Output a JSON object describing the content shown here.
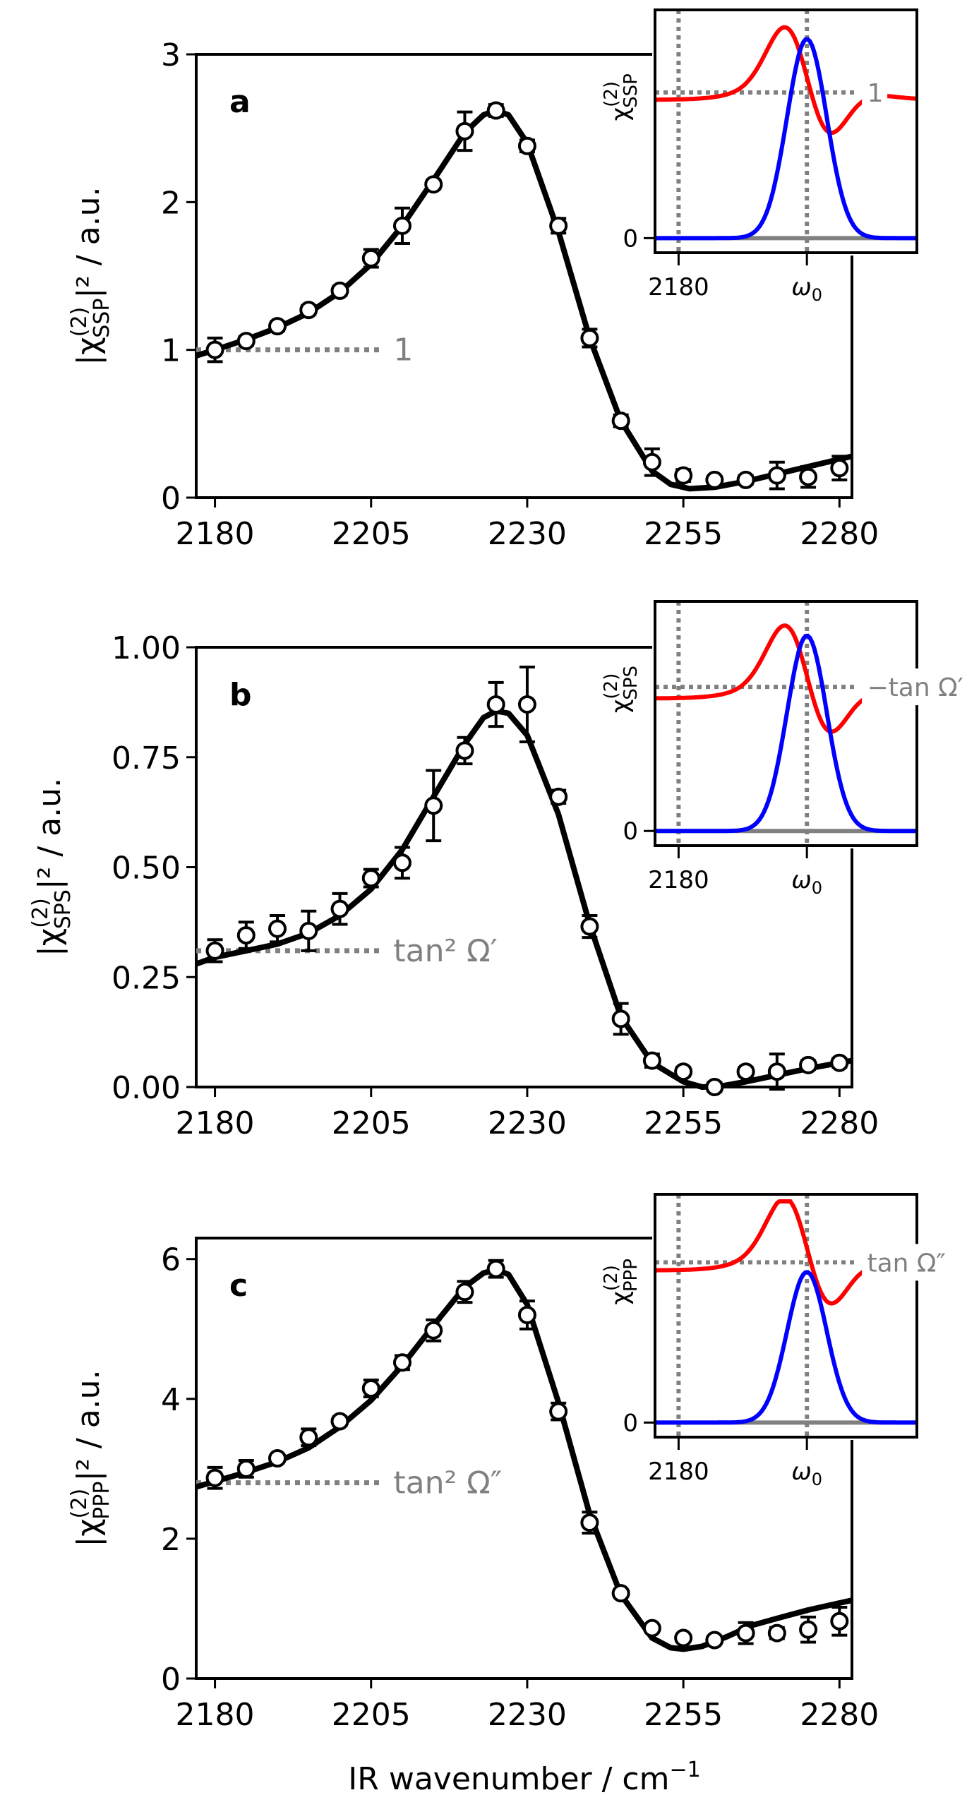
{
  "chart_data": [
    {
      "type": "scatter",
      "panel": "a",
      "title": "",
      "xlabel": "",
      "ylabel": "|χ(2)SSP|² / a.u.",
      "ylabel_parts": {
        "prefix": "|χ",
        "sup": "(2)",
        "sub": "SSP",
        "suffix": "|² / a.u."
      },
      "xlim": [
        2177,
        2282
      ],
      "ylim": [
        0,
        3
      ],
      "xticks": [
        2180,
        2205,
        2230,
        2255,
        2280
      ],
      "yticks": [
        0,
        1,
        2,
        3
      ],
      "ytick_labels": [
        "0",
        "1",
        "2",
        "3"
      ],
      "grid": false,
      "reference_line": {
        "y": 1,
        "x_end": 2207,
        "label": "1"
      },
      "series": [
        {
          "name": "measured",
          "style": "open-circle-errorbar",
          "x": [
            2180,
            2185,
            2190,
            2195,
            2200,
            2205,
            2210,
            2215,
            2220,
            2225,
            2230,
            2235,
            2240,
            2245,
            2250,
            2255,
            2260,
            2265,
            2270,
            2275,
            2280
          ],
          "y": [
            1.0,
            1.06,
            1.16,
            1.27,
            1.4,
            1.62,
            1.84,
            2.12,
            2.48,
            2.62,
            2.38,
            1.84,
            1.08,
            0.52,
            0.24,
            0.15,
            0.12,
            0.12,
            0.15,
            0.14,
            0.2
          ],
          "yerr": [
            0.08,
            0.03,
            0.03,
            0.03,
            0.03,
            0.06,
            0.12,
            0.03,
            0.13,
            0.04,
            0.04,
            0.05,
            0.06,
            0.04,
            0.09,
            0.04,
            0.02,
            0.03,
            0.09,
            0.07,
            0.08
          ]
        },
        {
          "name": "fit",
          "style": "line",
          "color": "#000000",
          "x": [
            2177,
            2180,
            2185,
            2190,
            2195,
            2200,
            2205,
            2210,
            2215,
            2220,
            2223,
            2225,
            2227,
            2230,
            2235,
            2240,
            2245,
            2250,
            2253,
            2256,
            2260,
            2265,
            2270,
            2275,
            2280,
            2282
          ],
          "y": [
            0.96,
            1.0,
            1.07,
            1.15,
            1.25,
            1.39,
            1.58,
            1.84,
            2.15,
            2.47,
            2.59,
            2.62,
            2.59,
            2.4,
            1.8,
            1.08,
            0.52,
            0.18,
            0.09,
            0.06,
            0.07,
            0.11,
            0.16,
            0.21,
            0.26,
            0.28
          ]
        }
      ],
      "inset": {
        "ylabel": "χ(2)SSP",
        "ylabel_parts": {
          "prefix": "χ",
          "sup": "(2)",
          "sub": "SSP"
        },
        "xtick_labels": [
          "2180",
          "ω0"
        ],
        "ytick_labels": [
          "0"
        ],
        "hline_label": "1",
        "hline_value": 1,
        "colors": {
          "real": "#ff0000",
          "imag": "#0000ff",
          "ref": "#808080"
        }
      }
    },
    {
      "type": "scatter",
      "panel": "b",
      "title": "",
      "xlabel": "",
      "ylabel": "|χ(2)SPS|² / a.u.",
      "ylabel_parts": {
        "prefix": "|χ",
        "sup": "(2)",
        "sub": "SPS",
        "suffix": "|² / a.u."
      },
      "xlim": [
        2177,
        2282
      ],
      "ylim": [
        0,
        1.0
      ],
      "xticks": [
        2180,
        2205,
        2230,
        2255,
        2280
      ],
      "yticks": [
        0,
        0.25,
        0.5,
        0.75,
        1.0
      ],
      "ytick_labels": [
        "0.00",
        "0.25",
        "0.50",
        "0.75",
        "1.00"
      ],
      "grid": false,
      "reference_line": {
        "y": 0.31,
        "x_end": 2207,
        "label": "tan² Ω′"
      },
      "series": [
        {
          "name": "measured",
          "style": "open-circle-errorbar",
          "x": [
            2180,
            2185,
            2190,
            2195,
            2200,
            2205,
            2210,
            2215,
            2220,
            2225,
            2230,
            2235,
            2240,
            2245,
            2250,
            2255,
            2260,
            2265,
            2270,
            2275,
            2280
          ],
          "y": [
            0.31,
            0.345,
            0.36,
            0.355,
            0.405,
            0.475,
            0.51,
            0.64,
            0.765,
            0.87,
            0.87,
            0.66,
            0.365,
            0.155,
            0.06,
            0.035,
            0.0,
            0.035,
            0.035,
            0.05,
            0.055
          ],
          "yerr": [
            0.025,
            0.03,
            0.03,
            0.045,
            0.035,
            0.02,
            0.035,
            0.08,
            0.03,
            0.05,
            0.085,
            0.015,
            0.025,
            0.035,
            0.015,
            0.01,
            0.01,
            0.01,
            0.04,
            0.01,
            0.01
          ]
        },
        {
          "name": "fit",
          "style": "line",
          "color": "#000000",
          "x": [
            2177,
            2180,
            2185,
            2190,
            2195,
            2200,
            2205,
            2210,
            2215,
            2220,
            2223,
            2225,
            2227,
            2230,
            2235,
            2240,
            2245,
            2250,
            2255,
            2258,
            2261,
            2265,
            2270,
            2275,
            2280,
            2282
          ],
          "y": [
            0.28,
            0.295,
            0.31,
            0.325,
            0.35,
            0.39,
            0.45,
            0.54,
            0.66,
            0.78,
            0.84,
            0.855,
            0.85,
            0.8,
            0.62,
            0.37,
            0.16,
            0.055,
            0.012,
            0.0,
            0.002,
            0.012,
            0.027,
            0.042,
            0.055,
            0.06
          ]
        }
      ],
      "inset": {
        "ylabel": "χ(2)SPS",
        "ylabel_parts": {
          "prefix": "χ",
          "sup": "(2)",
          "sub": "SPS"
        },
        "xtick_labels": [
          "2180",
          "ω0"
        ],
        "ytick_labels": [
          "0"
        ],
        "hline_label": "−tan Ω′",
        "colors": {
          "real": "#ff0000",
          "imag": "#0000ff",
          "ref": "#808080"
        }
      }
    },
    {
      "type": "scatter",
      "panel": "c",
      "title": "",
      "xlabel": "IR wavenumber / cm⁻¹",
      "ylabel": "|χ(2)PPP|² / a.u.",
      "ylabel_parts": {
        "prefix": "|χ",
        "sup": "(2)",
        "sub": "PPP",
        "suffix": "|² / a.u."
      },
      "xlim": [
        2177,
        2282
      ],
      "ylim": [
        0,
        6.3
      ],
      "xticks": [
        2180,
        2205,
        2230,
        2255,
        2280
      ],
      "yticks": [
        0,
        2,
        4,
        6
      ],
      "ytick_labels": [
        "0",
        "2",
        "4",
        "6"
      ],
      "grid": false,
      "reference_line": {
        "y": 2.8,
        "x_end": 2207,
        "label": "tan² Ω″"
      },
      "series": [
        {
          "name": "measured",
          "style": "open-circle-errorbar",
          "x": [
            2180,
            2185,
            2190,
            2195,
            2200,
            2205,
            2210,
            2215,
            2220,
            2225,
            2230,
            2235,
            2240,
            2245,
            2250,
            2255,
            2260,
            2265,
            2270,
            2275,
            2280
          ],
          "y": [
            2.87,
            3.0,
            3.15,
            3.45,
            3.68,
            4.15,
            4.52,
            4.98,
            5.53,
            5.86,
            5.2,
            3.82,
            2.23,
            1.22,
            0.72,
            0.58,
            0.55,
            0.65,
            0.65,
            0.7,
            0.82
          ],
          "yerr": [
            0.15,
            0.12,
            0.05,
            0.12,
            0.06,
            0.12,
            0.1,
            0.15,
            0.15,
            0.12,
            0.2,
            0.12,
            0.15,
            0.05,
            0.05,
            0.05,
            0.05,
            0.15,
            0.08,
            0.18,
            0.2
          ]
        },
        {
          "name": "fit",
          "style": "line",
          "color": "#000000",
          "x": [
            2177,
            2180,
            2185,
            2190,
            2195,
            2200,
            2205,
            2210,
            2215,
            2220,
            2223,
            2225,
            2227,
            2230,
            2235,
            2240,
            2245,
            2250,
            2253,
            2255,
            2258,
            2262,
            2266,
            2270,
            2275,
            2280,
            2282
          ],
          "y": [
            2.74,
            2.82,
            2.95,
            3.1,
            3.3,
            3.6,
            3.98,
            4.48,
            5.05,
            5.6,
            5.8,
            5.85,
            5.78,
            5.35,
            3.95,
            2.35,
            1.2,
            0.58,
            0.44,
            0.42,
            0.46,
            0.6,
            0.76,
            0.86,
            0.98,
            1.08,
            1.12
          ]
        }
      ],
      "inset": {
        "ylabel": "χ(2)PPP",
        "ylabel_parts": {
          "prefix": "χ",
          "sup": "(2)",
          "sub": "PPP"
        },
        "xtick_labels": [
          "2180",
          "ω0"
        ],
        "ytick_labels": [
          "0"
        ],
        "hline_label": "tan Ω″",
        "colors": {
          "real": "#ff0000",
          "imag": "#0000ff",
          "ref": "#808080"
        }
      }
    }
  ],
  "figure": {
    "xlabel": "IR wavenumber / cm⁻¹",
    "xlabel_parts": {
      "main": "IR wavenumber / cm",
      "sup": "−1"
    },
    "xtick_labels": [
      "2180",
      "2205",
      "2230",
      "2255",
      "2280"
    ],
    "panel_letters": [
      "a",
      "b",
      "c"
    ]
  }
}
